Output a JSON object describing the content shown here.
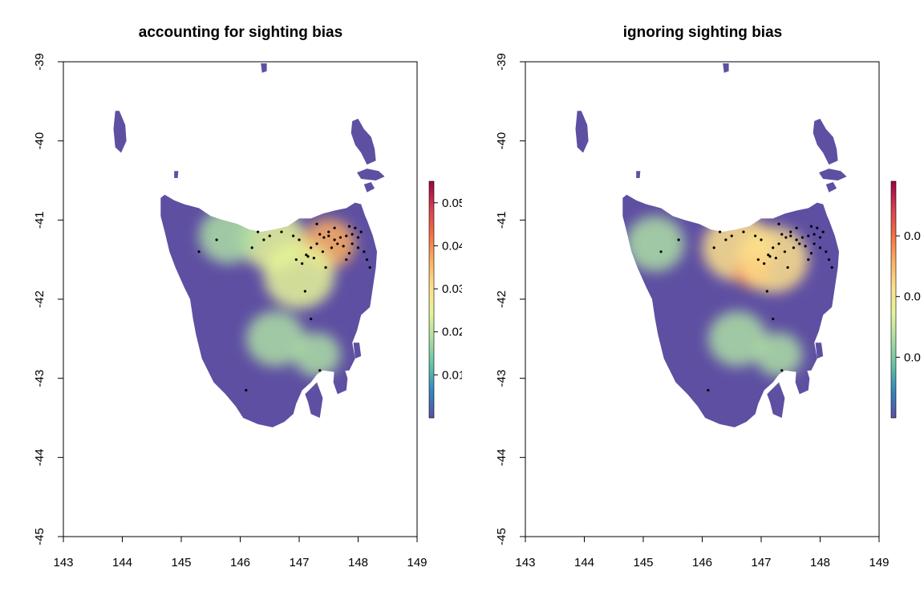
{
  "colors": {
    "land_base": "#5e4fa2",
    "palette": [
      "#5e4fa2",
      "#3288bd",
      "#66c2a5",
      "#abdda4",
      "#e6f598",
      "#fee08b",
      "#fdae61",
      "#f46d43",
      "#d53e4f",
      "#9e0142"
    ],
    "points": "#000000"
  },
  "chart_data": [
    {
      "type": "heatmap",
      "title": "accounting for sighting bias",
      "xlim": [
        143,
        149
      ],
      "ylim": [
        -45,
        -39
      ],
      "x_ticks": [
        "143",
        "144",
        "145",
        "146",
        "147",
        "148",
        "149"
      ],
      "y_ticks": [
        "-45",
        "-44",
        "-43",
        "-42",
        "-41",
        "-40",
        "-39"
      ],
      "legend": {
        "position": "right",
        "max": 0.055,
        "tick_labels": [
          "0.01",
          "0.02",
          "0.03",
          "0.04",
          "0.05"
        ]
      },
      "hotspots": [
        {
          "lon": 146.55,
          "lat": -41.25,
          "weight": 0.45,
          "r": 0.55
        },
        {
          "lon": 147.1,
          "lat": -41.45,
          "weight": 1.0,
          "r": 0.12
        },
        {
          "lon": 147.5,
          "lat": -41.3,
          "weight": 0.75,
          "r": 0.45
        },
        {
          "lon": 147.0,
          "lat": -41.7,
          "weight": 0.45,
          "r": 0.6
        },
        {
          "lon": 145.8,
          "lat": -41.2,
          "weight": 0.3,
          "r": 0.5
        },
        {
          "lon": 146.6,
          "lat": -42.5,
          "weight": 0.25,
          "r": 0.5
        },
        {
          "lon": 147.3,
          "lat": -42.7,
          "weight": 0.3,
          "r": 0.4
        }
      ]
    },
    {
      "type": "heatmap",
      "title": "ignoring sighting bias",
      "xlim": [
        143,
        149
      ],
      "ylim": [
        -45,
        -39
      ],
      "x_ticks": [
        "143",
        "144",
        "145",
        "146",
        "147",
        "148",
        "149"
      ],
      "y_ticks": [
        "-45",
        "-44",
        "-43",
        "-42",
        "-41",
        "-40",
        "-39"
      ],
      "legend": {
        "position": "right",
        "tick_labels": [
          "0.0",
          "0.0",
          "0.0"
        ]
      },
      "hotspots": [
        {
          "lon": 146.6,
          "lat": -41.35,
          "weight": 0.6,
          "r": 0.6
        },
        {
          "lon": 146.85,
          "lat": -41.65,
          "weight": 0.85,
          "r": 0.3
        },
        {
          "lon": 147.2,
          "lat": -41.5,
          "weight": 0.5,
          "r": 0.6
        },
        {
          "lon": 145.2,
          "lat": -41.3,
          "weight": 0.35,
          "r": 0.5
        },
        {
          "lon": 146.6,
          "lat": -42.5,
          "weight": 0.3,
          "r": 0.5
        },
        {
          "lon": 147.3,
          "lat": -42.7,
          "weight": 0.3,
          "r": 0.4
        }
      ]
    }
  ],
  "sightings": [
    {
      "lon": 147.35,
      "lat": -41.18
    },
    {
      "lon": 147.42,
      "lat": -41.22
    },
    {
      "lon": 147.5,
      "lat": -41.2
    },
    {
      "lon": 147.6,
      "lat": -41.25
    },
    {
      "lon": 147.7,
      "lat": -41.22
    },
    {
      "lon": 147.8,
      "lat": -41.2
    },
    {
      "lon": 147.9,
      "lat": -41.18
    },
    {
      "lon": 148.0,
      "lat": -41.22
    },
    {
      "lon": 148.05,
      "lat": -41.15
    },
    {
      "lon": 147.95,
      "lat": -41.1
    },
    {
      "lon": 147.85,
      "lat": -41.08
    },
    {
      "lon": 147.3,
      "lat": -41.3
    },
    {
      "lon": 147.2,
      "lat": -41.35
    },
    {
      "lon": 147.12,
      "lat": -41.44
    },
    {
      "lon": 147.15,
      "lat": -41.46
    },
    {
      "lon": 147.25,
      "lat": -41.48
    },
    {
      "lon": 147.4,
      "lat": -41.4
    },
    {
      "lon": 147.55,
      "lat": -41.35
    },
    {
      "lon": 147.65,
      "lat": -41.3
    },
    {
      "lon": 147.75,
      "lat": -41.33
    },
    {
      "lon": 147.0,
      "lat": -41.25
    },
    {
      "lon": 146.9,
      "lat": -41.2
    },
    {
      "lon": 146.7,
      "lat": -41.15
    },
    {
      "lon": 146.5,
      "lat": -41.2
    },
    {
      "lon": 146.4,
      "lat": -41.25
    },
    {
      "lon": 146.3,
      "lat": -41.15
    },
    {
      "lon": 147.05,
      "lat": -41.55
    },
    {
      "lon": 146.95,
      "lat": -41.5
    },
    {
      "lon": 147.45,
      "lat": -41.6
    },
    {
      "lon": 148.15,
      "lat": -41.5
    },
    {
      "lon": 148.2,
      "lat": -41.6
    },
    {
      "lon": 148.1,
      "lat": -41.4
    },
    {
      "lon": 147.85,
      "lat": -41.42
    },
    {
      "lon": 147.3,
      "lat": -41.05
    },
    {
      "lon": 147.6,
      "lat": -41.1
    },
    {
      "lon": 147.8,
      "lat": -41.5
    },
    {
      "lon": 146.1,
      "lat": -43.15
    },
    {
      "lon": 147.35,
      "lat": -42.9
    },
    {
      "lon": 147.2,
      "lat": -42.25
    },
    {
      "lon": 147.1,
      "lat": -41.9
    },
    {
      "lon": 145.3,
      "lat": -41.4
    },
    {
      "lon": 145.6,
      "lat": -41.25
    },
    {
      "lon": 146.2,
      "lat": -41.35
    },
    {
      "lon": 147.5,
      "lat": -41.15
    },
    {
      "lon": 147.9,
      "lat": -41.3
    },
    {
      "lon": 148.0,
      "lat": -41.35
    }
  ],
  "land": {
    "tasmania": [
      [
        144.65,
        -40.72
      ],
      [
        144.72,
        -40.68
      ],
      [
        144.88,
        -40.75
      ],
      [
        145.05,
        -40.8
      ],
      [
        145.3,
        -40.85
      ],
      [
        145.5,
        -40.95
      ],
      [
        145.7,
        -41.0
      ],
      [
        145.95,
        -41.05
      ],
      [
        146.15,
        -41.12
      ],
      [
        146.35,
        -41.15
      ],
      [
        146.58,
        -41.12
      ],
      [
        146.8,
        -41.08
      ],
      [
        147.0,
        -40.98
      ],
      [
        147.2,
        -40.98
      ],
      [
        147.4,
        -40.92
      ],
      [
        147.6,
        -40.88
      ],
      [
        147.8,
        -40.85
      ],
      [
        147.95,
        -40.78
      ],
      [
        148.05,
        -40.8
      ],
      [
        148.12,
        -40.95
      ],
      [
        148.15,
        -41.0
      ],
      [
        148.25,
        -41.2
      ],
      [
        148.32,
        -41.4
      ],
      [
        148.3,
        -41.6
      ],
      [
        148.25,
        -41.85
      ],
      [
        148.2,
        -42.1
      ],
      [
        148.05,
        -42.2
      ],
      [
        147.98,
        -42.4
      ],
      [
        147.9,
        -42.55
      ],
      [
        147.95,
        -42.75
      ],
      [
        147.85,
        -42.9
      ],
      [
        147.6,
        -42.92
      ],
      [
        147.4,
        -42.9
      ],
      [
        147.3,
        -42.95
      ],
      [
        147.2,
        -43.05
      ],
      [
        147.05,
        -43.15
      ],
      [
        146.95,
        -43.32
      ],
      [
        146.9,
        -43.45
      ],
      [
        146.75,
        -43.55
      ],
      [
        146.55,
        -43.62
      ],
      [
        146.3,
        -43.58
      ],
      [
        146.05,
        -43.5
      ],
      [
        145.92,
        -43.35
      ],
      [
        145.75,
        -43.2
      ],
      [
        145.55,
        -43.05
      ],
      [
        145.35,
        -42.75
      ],
      [
        145.25,
        -42.45
      ],
      [
        145.2,
        -42.25
      ],
      [
        145.15,
        -42.0
      ],
      [
        145.05,
        -41.85
      ],
      [
        144.9,
        -41.6
      ],
      [
        144.8,
        -41.4
      ],
      [
        144.72,
        -41.15
      ],
      [
        144.65,
        -40.95
      ]
    ],
    "islands": [
      [
        [
          143.88,
          -39.62
        ],
        [
          143.95,
          -39.62
        ],
        [
          144.05,
          -39.8
        ],
        [
          144.07,
          -40.0
        ],
        [
          143.98,
          -40.15
        ],
        [
          143.88,
          -40.08
        ],
        [
          143.85,
          -39.85
        ]
      ],
      [
        [
          147.9,
          -39.75
        ],
        [
          148.0,
          -39.72
        ],
        [
          148.1,
          -39.85
        ],
        [
          148.22,
          -39.95
        ],
        [
          148.28,
          -40.1
        ],
        [
          148.3,
          -40.25
        ],
        [
          148.15,
          -40.3
        ],
        [
          148.05,
          -40.15
        ],
        [
          147.95,
          -40.05
        ],
        [
          147.88,
          -39.9
        ]
      ],
      [
        [
          147.98,
          -40.4
        ],
        [
          148.15,
          -40.35
        ],
        [
          148.35,
          -40.38
        ],
        [
          148.45,
          -40.45
        ],
        [
          148.3,
          -40.5
        ],
        [
          148.05,
          -40.48
        ]
      ],
      [
        [
          148.1,
          -40.55
        ],
        [
          148.22,
          -40.52
        ],
        [
          148.28,
          -40.6
        ],
        [
          148.15,
          -40.65
        ]
      ],
      [
        [
          146.35,
          -39.02
        ],
        [
          146.45,
          -39.02
        ],
        [
          146.45,
          -39.12
        ],
        [
          146.37,
          -39.14
        ]
      ],
      [
        [
          147.1,
          -43.2
        ],
        [
          147.3,
          -43.05
        ],
        [
          147.4,
          -43.25
        ],
        [
          147.35,
          -43.5
        ],
        [
          147.2,
          -43.45
        ],
        [
          147.15,
          -43.3
        ]
      ],
      [
        [
          147.6,
          -42.85
        ],
        [
          147.75,
          -42.83
        ],
        [
          147.82,
          -43.0
        ],
        [
          147.8,
          -43.15
        ],
        [
          147.65,
          -43.2
        ],
        [
          147.58,
          -43.05
        ]
      ],
      [
        [
          147.92,
          -42.55
        ],
        [
          148.02,
          -42.55
        ],
        [
          148.05,
          -42.72
        ],
        [
          147.95,
          -42.75
        ]
      ],
      [
        [
          144.88,
          -40.38
        ],
        [
          144.95,
          -40.38
        ],
        [
          144.94,
          -40.47
        ],
        [
          144.88,
          -40.47
        ]
      ]
    ]
  }
}
